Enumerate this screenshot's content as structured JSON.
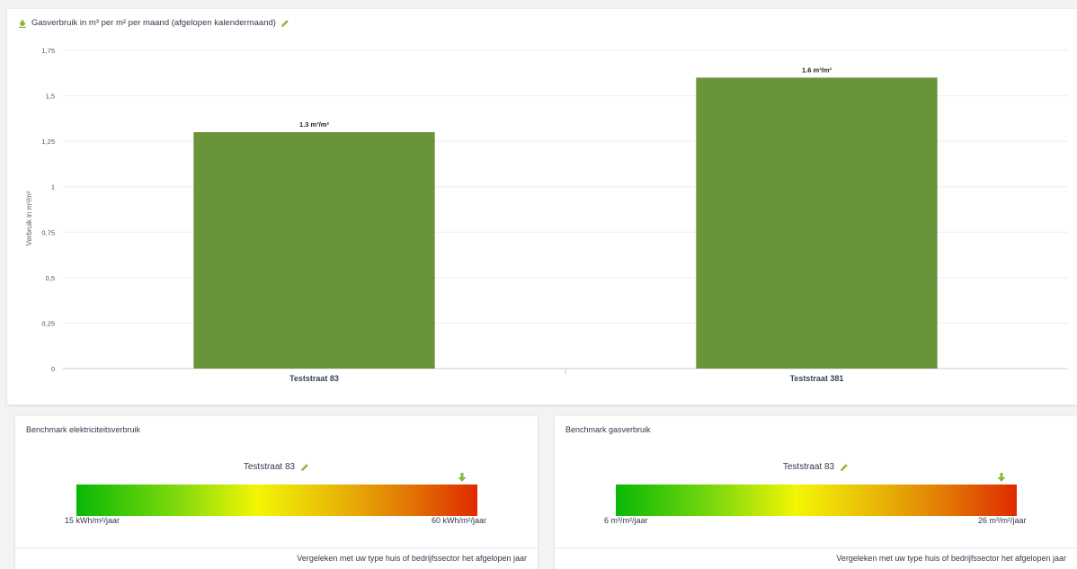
{
  "chart_card": {
    "title": "Gasverbruik in m³ per m² per maand (afgelopen kalendermaand)"
  },
  "chart_data": {
    "type": "bar",
    "title": "Gasverbruik in m³ per m² per maand (afgelopen kalendermaand)",
    "ylabel": "Verbruik in m³/m²",
    "xlabel": "",
    "categories": [
      "Teststraat 83",
      "Teststraat 381"
    ],
    "values": [
      1.3,
      1.6
    ],
    "data_labels": [
      "1.3 m³/m²",
      "1.6 m³/m²"
    ],
    "ylim": [
      0,
      1.75
    ],
    "yticks": [
      0,
      0.25,
      0.5,
      0.75,
      1,
      1.25,
      1.5,
      1.75
    ],
    "ytick_labels": [
      "0",
      "0,25",
      "0,5",
      "0,75",
      "1",
      "1,25",
      "1,5",
      "1,75"
    ],
    "grid": true,
    "bar_color": "#6a9439"
  },
  "benchmarks": [
    {
      "title": "Benchmark elektriciteitsverbruik",
      "address": "Teststraat 83",
      "min_label": "15 kWh/m²/jaar",
      "max_label": "60 kWh/m²/jaar",
      "marker_level": 0.96,
      "note": "Vergeleken met uw type huis of bedrijfssector het afgelopen jaar"
    },
    {
      "title": "Benchmark gasverbruik",
      "address": "Teststraat 83",
      "min_label": "6 m³/m²/jaar",
      "max_label": "26 m³/m²/jaar",
      "marker_level": 0.96,
      "note": "Vergeleken met uw type huis of bedrijfssector het afgelopen jaar"
    }
  ],
  "colors": {
    "accent": "#8db63c",
    "bar": "#6a9439",
    "text": "#2f3a4a"
  },
  "icons": {
    "title_icon": "edit-pencil-icon",
    "marker": "arrow-down-icon"
  }
}
